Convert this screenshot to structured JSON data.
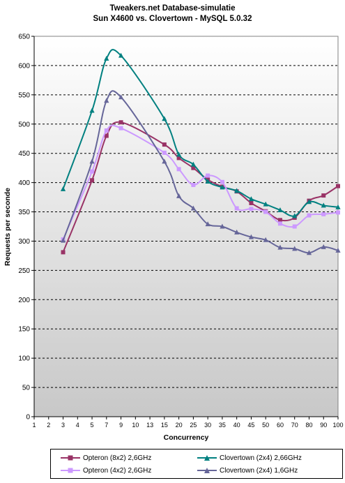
{
  "chart_data": {
    "type": "line",
    "title": "Tweakers.net Database-simulatie",
    "subtitle": "Sun X4600 vs. Clovertown - MySQL 5.0.32",
    "xlabel": "Concurrency",
    "ylabel": "Requests per seconde",
    "categories": [
      "1",
      "2",
      "3",
      "4",
      "5",
      "7",
      "9",
      "10",
      "13",
      "15",
      "20",
      "25",
      "30",
      "35",
      "40",
      "45",
      "50",
      "60",
      "70",
      "80",
      "90",
      "100"
    ],
    "ylim": [
      0,
      650
    ],
    "yticks": [
      0,
      50,
      100,
      150,
      200,
      250,
      300,
      350,
      400,
      450,
      500,
      550,
      600,
      650
    ],
    "grid": "horizontal dashed",
    "legend_position": "bottom",
    "series": [
      {
        "name": "Opteron (8x2) 2,6GHz",
        "color": "#993366",
        "marker": "square",
        "values": [
          null,
          null,
          281,
          null,
          404,
          480,
          503,
          null,
          null,
          465,
          442,
          425,
          405,
          393,
          385,
          365,
          351,
          336,
          340,
          369,
          378,
          394
        ]
      },
      {
        "name": "Clovertown (2x4) 2,66GHz",
        "color": "#008080",
        "marker": "triangle",
        "values": [
          null,
          null,
          389,
          null,
          523,
          612,
          617,
          null,
          null,
          509,
          448,
          431,
          402,
          392,
          386,
          372,
          363,
          353,
          343,
          367,
          361,
          358
        ]
      },
      {
        "name": "Opteron (4x2) 2,6GHz",
        "color": "#cc99ff",
        "marker": "square",
        "values": [
          null,
          null,
          303,
          null,
          419,
          489,
          493,
          null,
          null,
          451,
          423,
          396,
          412,
          401,
          356,
          355,
          350,
          330,
          325,
          344,
          346,
          349
        ]
      },
      {
        "name": "Clovertown (2x4) 1,6GHz",
        "color": "#666699",
        "marker": "triangle",
        "values": [
          null,
          null,
          301,
          null,
          436,
          540,
          546,
          null,
          null,
          436,
          377,
          356,
          329,
          325,
          315,
          307,
          302,
          289,
          287,
          280,
          290,
          284
        ]
      }
    ]
  }
}
